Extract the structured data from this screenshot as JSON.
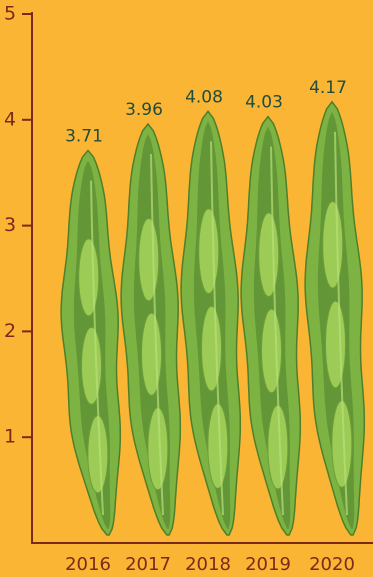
{
  "chart_data": {
    "type": "bar",
    "categories": [
      "2016",
      "2017",
      "2018",
      "2019",
      "2020"
    ],
    "values": [
      3.71,
      3.96,
      4.08,
      4.03,
      4.17
    ],
    "color": "#7cb342",
    "ylim": [
      0,
      5
    ],
    "yticks": [
      1,
      2,
      3,
      4,
      5
    ]
  }
}
